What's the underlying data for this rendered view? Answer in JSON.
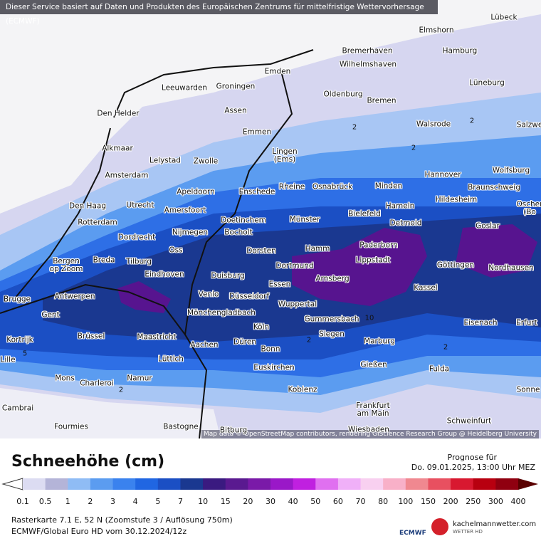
{
  "banner": "Dieser Service basiert auf Daten und Produkten des Europäischen Zentrums für mittelfristige Wettervorhersage (ECMWF)",
  "attribution": "Map data © OpenStreetMap contributors, rendering GIScience Research Group @ Heidelberg University",
  "cities": [
    "Lübeck",
    "Elmshorn",
    "Hamburg",
    "Bremerhaven",
    "Wilhelmshaven",
    "Emden",
    "Leeuwarden",
    "Groningen",
    "Oldenburg",
    "Bremen",
    "Lüneburg",
    "Den Helder",
    "Assen",
    "Emmen",
    "Walsrode",
    "Salzwe",
    "Alkmaar",
    "Lelystad",
    "Zwolle",
    "Lingen\n(Ems)",
    "Amsterdam",
    "Hannover",
    "Wolfsburg",
    "Apeldoorn",
    "Enschede",
    "Rheine",
    "Osnabrück",
    "Minden",
    "Braunschweig",
    "Den Haag",
    "Utrecht",
    "Amersfoort",
    "Bielefeld",
    "Hameln",
    "Hildesheim",
    "Oscher\n(Bo",
    "Rotterdam",
    "Doetinchem",
    "Münster",
    "Detmold",
    "Goslar",
    "Dordrecht",
    "Nijmegen",
    "Bocholt",
    "Paderborn",
    "Oss",
    "Dorsten",
    "Hamm",
    "Bergen\nop Zoom",
    "Breda",
    "Tilburg",
    "Dortmund",
    "Lippstadt",
    "Göttingen",
    "Nordhausen",
    "Eindhoven",
    "Duisburg",
    "Arnsberg",
    "Antwerpen",
    "Essen",
    "Venlo",
    "Düsseldorf",
    "Wuppertal",
    "Kassel",
    "Brugge",
    "Gent",
    "Mönchengladbach",
    "Gummersbach",
    "Eisenach",
    "Erfurt",
    "Köln",
    "Siegen",
    "Kortrijk",
    "Brüssel",
    "Maastricht",
    "Aachen",
    "Düren",
    "Marburg",
    "Bonn",
    "Lille",
    "Lüttich",
    "Gießen",
    "Euskirchen",
    "Fulda",
    "Mons",
    "Charleroi",
    "Namur",
    "Koblenz",
    "Sonne",
    "Cambrai",
    "Frankfurt\nam Main",
    "Schweinfurt",
    "Fourmies",
    "Bastogne",
    "Bitburg",
    "Wiesbaden"
  ],
  "contour_labels": [
    "2",
    "2",
    "2",
    "2",
    "2",
    "10",
    "5",
    "2"
  ],
  "legend": {
    "title": "Schneehöhe (cm)",
    "ticks": [
      "0.1",
      "0.5",
      "1",
      "2",
      "3",
      "4",
      "5",
      "7",
      "10",
      "15",
      "20",
      "30",
      "40",
      "50",
      "60",
      "70",
      "80",
      "100",
      "150",
      "200",
      "250",
      "300",
      "400"
    ]
  },
  "forecast": {
    "label": "Prognose für",
    "time": "Do. 09.01.2025, 13:00 Uhr MEZ"
  },
  "footer": {
    "line1": "Rasterkarte 7.1 E, 52 N  (Zoomstufe 3 / Auflösung 750m)",
    "line2": "ECMWF/Global Euro HD vom  30.12.2024/12z"
  },
  "logos": {
    "ecmwf": "ECMWF",
    "site": "kachelmannwetter.com",
    "site_sub": "WETTER HD"
  }
}
